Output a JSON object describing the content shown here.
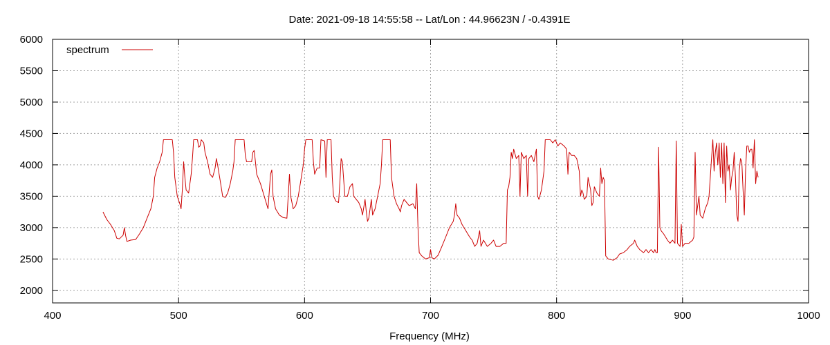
{
  "chart_data": {
    "type": "line",
    "title": "Date: 2021-09-18 14:55:58  --  Lat/Lon : 44.96623N / -0.4391E",
    "xlabel": "Frequency (MHz)",
    "ylabel": "",
    "xlim": [
      400,
      1000
    ],
    "ylim": [
      1800,
      6000
    ],
    "x_ticks": [
      400,
      500,
      600,
      700,
      800,
      900,
      1000
    ],
    "y_ticks": [
      2000,
      2500,
      3000,
      3500,
      4000,
      4500,
      5000,
      5500,
      6000
    ],
    "grid": true,
    "legend_position": "top-left",
    "series": [
      {
        "name": "spectrum",
        "color": "#cc0000",
        "points": [
          [
            440,
            3250
          ],
          [
            443,
            3130
          ],
          [
            446,
            3050
          ],
          [
            449,
            2950
          ],
          [
            451,
            2830
          ],
          [
            453,
            2820
          ],
          [
            456,
            2880
          ],
          [
            457,
            3000
          ],
          [
            458,
            2870
          ],
          [
            459,
            2780
          ],
          [
            462,
            2800
          ],
          [
            466,
            2810
          ],
          [
            469,
            2900
          ],
          [
            472,
            3000
          ],
          [
            475,
            3150
          ],
          [
            478,
            3300
          ],
          [
            480,
            3500
          ],
          [
            481,
            3800
          ],
          [
            483,
            3950
          ],
          [
            485,
            4050
          ],
          [
            487,
            4200
          ],
          [
            488,
            4400
          ],
          [
            495,
            4400
          ],
          [
            496,
            4200
          ],
          [
            497,
            3800
          ],
          [
            499,
            3500
          ],
          [
            501,
            3380
          ],
          [
            502,
            3300
          ],
          [
            503,
            3600
          ],
          [
            504,
            4050
          ],
          [
            505,
            3800
          ],
          [
            506,
            3600
          ],
          [
            508,
            3550
          ],
          [
            510,
            3850
          ],
          [
            511,
            4100
          ],
          [
            512,
            4400
          ],
          [
            515,
            4400
          ],
          [
            516,
            4280
          ],
          [
            517,
            4300
          ],
          [
            518,
            4400
          ],
          [
            520,
            4350
          ],
          [
            521,
            4200
          ],
          [
            523,
            4050
          ],
          [
            525,
            3850
          ],
          [
            527,
            3800
          ],
          [
            529,
            3950
          ],
          [
            530,
            4100
          ],
          [
            531,
            4000
          ],
          [
            533,
            3750
          ],
          [
            535,
            3500
          ],
          [
            537,
            3480
          ],
          [
            539,
            3550
          ],
          [
            541,
            3700
          ],
          [
            543,
            3900
          ],
          [
            544,
            4050
          ],
          [
            545,
            4400
          ],
          [
            552,
            4400
          ],
          [
            553,
            4150
          ],
          [
            554,
            4050
          ],
          [
            558,
            4050
          ],
          [
            559,
            4200
          ],
          [
            560,
            4230
          ],
          [
            561,
            4050
          ],
          [
            562,
            3850
          ],
          [
            565,
            3700
          ],
          [
            568,
            3500
          ],
          [
            571,
            3300
          ],
          [
            573,
            3850
          ],
          [
            574,
            3920
          ],
          [
            575,
            3500
          ],
          [
            577,
            3300
          ],
          [
            580,
            3200
          ],
          [
            583,
            3160
          ],
          [
            586,
            3150
          ],
          [
            587,
            3500
          ],
          [
            588,
            3850
          ],
          [
            589,
            3500
          ],
          [
            591,
            3300
          ],
          [
            593,
            3350
          ],
          [
            595,
            3500
          ],
          [
            597,
            3750
          ],
          [
            599,
            4000
          ],
          [
            600,
            4250
          ],
          [
            601,
            4400
          ],
          [
            606,
            4400
          ],
          [
            607,
            4050
          ],
          [
            608,
            3850
          ],
          [
            610,
            3950
          ],
          [
            612,
            3950
          ],
          [
            613,
            4400
          ],
          [
            616,
            4380
          ],
          [
            617,
            3800
          ],
          [
            618,
            4400
          ],
          [
            621,
            4400
          ],
          [
            622,
            3800
          ],
          [
            623,
            3500
          ],
          [
            625,
            3420
          ],
          [
            627,
            3400
          ],
          [
            628,
            3700
          ],
          [
            629,
            4100
          ],
          [
            630,
            4050
          ],
          [
            632,
            3500
          ],
          [
            634,
            3500
          ],
          [
            636,
            3650
          ],
          [
            638,
            3700
          ],
          [
            639,
            3500
          ],
          [
            641,
            3450
          ],
          [
            643,
            3400
          ],
          [
            645,
            3300
          ],
          [
            646,
            3200
          ],
          [
            648,
            3450
          ],
          [
            649,
            3250
          ],
          [
            650,
            3100
          ],
          [
            651,
            3150
          ],
          [
            653,
            3450
          ],
          [
            654,
            3200
          ],
          [
            656,
            3300
          ],
          [
            658,
            3500
          ],
          [
            660,
            3700
          ],
          [
            661,
            4000
          ],
          [
            662,
            4400
          ],
          [
            668,
            4400
          ],
          [
            669,
            3800
          ],
          [
            671,
            3500
          ],
          [
            673,
            3380
          ],
          [
            675,
            3300
          ],
          [
            676,
            3250
          ],
          [
            677,
            3350
          ],
          [
            679,
            3450
          ],
          [
            681,
            3400
          ],
          [
            683,
            3350
          ],
          [
            686,
            3380
          ],
          [
            688,
            3300
          ],
          [
            689,
            3700
          ],
          [
            690,
            3000
          ],
          [
            691,
            2600
          ],
          [
            693,
            2550
          ],
          [
            696,
            2500
          ],
          [
            699,
            2520
          ],
          [
            700,
            2650
          ],
          [
            701,
            2520
          ],
          [
            703,
            2500
          ],
          [
            706,
            2560
          ],
          [
            709,
            2700
          ],
          [
            712,
            2850
          ],
          [
            715,
            3000
          ],
          [
            718,
            3100
          ],
          [
            719,
            3200
          ],
          [
            720,
            3380
          ],
          [
            721,
            3200
          ],
          [
            723,
            3150
          ],
          [
            725,
            3050
          ],
          [
            728,
            2950
          ],
          [
            731,
            2850
          ],
          [
            733,
            2800
          ],
          [
            735,
            2700
          ],
          [
            737,
            2750
          ],
          [
            739,
            2950
          ],
          [
            740,
            2700
          ],
          [
            742,
            2800
          ],
          [
            745,
            2700
          ],
          [
            748,
            2750
          ],
          [
            750,
            2800
          ],
          [
            752,
            2700
          ],
          [
            755,
            2700
          ],
          [
            758,
            2750
          ],
          [
            760,
            2750
          ],
          [
            761,
            3600
          ],
          [
            762,
            3650
          ],
          [
            763,
            3800
          ],
          [
            764,
            4200
          ],
          [
            765,
            4100
          ],
          [
            766,
            4250
          ],
          [
            768,
            4100
          ],
          [
            770,
            4150
          ],
          [
            771,
            3500
          ],
          [
            772,
            4200
          ],
          [
            774,
            4100
          ],
          [
            776,
            4150
          ],
          [
            777,
            3500
          ],
          [
            778,
            4100
          ],
          [
            780,
            4150
          ],
          [
            782,
            4050
          ],
          [
            784,
            4250
          ],
          [
            785,
            3500
          ],
          [
            786,
            3450
          ],
          [
            788,
            3600
          ],
          [
            790,
            3900
          ],
          [
            791,
            4400
          ],
          [
            795,
            4400
          ],
          [
            797,
            4350
          ],
          [
            799,
            4400
          ],
          [
            801,
            4300
          ],
          [
            803,
            4350
          ],
          [
            806,
            4300
          ],
          [
            808,
            4250
          ],
          [
            809,
            3850
          ],
          [
            810,
            4200
          ],
          [
            812,
            4150
          ],
          [
            814,
            4150
          ],
          [
            816,
            4100
          ],
          [
            818,
            3900
          ],
          [
            819,
            3500
          ],
          [
            820,
            3600
          ],
          [
            821,
            3550
          ],
          [
            822,
            3450
          ],
          [
            824,
            3500
          ],
          [
            825,
            3800
          ],
          [
            826,
            3700
          ],
          [
            827,
            3600
          ],
          [
            828,
            3350
          ],
          [
            829,
            3400
          ],
          [
            830,
            3650
          ],
          [
            832,
            3550
          ],
          [
            834,
            3500
          ],
          [
            835,
            3950
          ],
          [
            836,
            3700
          ],
          [
            837,
            3800
          ],
          [
            838,
            3750
          ],
          [
            839,
            2550
          ],
          [
            841,
            2500
          ],
          [
            845,
            2480
          ],
          [
            848,
            2520
          ],
          [
            850,
            2580
          ],
          [
            853,
            2600
          ],
          [
            856,
            2650
          ],
          [
            858,
            2700
          ],
          [
            861,
            2750
          ],
          [
            862,
            2800
          ],
          [
            864,
            2700
          ],
          [
            866,
            2650
          ],
          [
            869,
            2600
          ],
          [
            871,
            2650
          ],
          [
            873,
            2600
          ],
          [
            875,
            2650
          ],
          [
            877,
            2600
          ],
          [
            878,
            2650
          ],
          [
            879,
            2600
          ],
          [
            880,
            2600
          ],
          [
            881,
            4280
          ],
          [
            882,
            3000
          ],
          [
            883,
            2950
          ],
          [
            885,
            2900
          ],
          [
            888,
            2800
          ],
          [
            890,
            2750
          ],
          [
            892,
            2800
          ],
          [
            894,
            2750
          ],
          [
            895,
            4380
          ],
          [
            896,
            2750
          ],
          [
            898,
            2700
          ],
          [
            899,
            3050
          ],
          [
            900,
            2700
          ],
          [
            902,
            2750
          ],
          [
            905,
            2750
          ],
          [
            908,
            2800
          ],
          [
            909,
            2850
          ],
          [
            910,
            4200
          ],
          [
            911,
            3200
          ],
          [
            913,
            3500
          ],
          [
            914,
            3200
          ],
          [
            916,
            3150
          ],
          [
            918,
            3300
          ],
          [
            920,
            3400
          ],
          [
            921,
            3500
          ],
          [
            922,
            3800
          ],
          [
            923,
            4100
          ],
          [
            924,
            4400
          ],
          [
            925,
            3900
          ],
          [
            926,
            4200
          ],
          [
            927,
            4350
          ],
          [
            928,
            4000
          ],
          [
            929,
            4350
          ],
          [
            930,
            3800
          ],
          [
            931,
            4350
          ],
          [
            932,
            3700
          ],
          [
            933,
            4350
          ],
          [
            934,
            3400
          ],
          [
            935,
            4300
          ],
          [
            936,
            3900
          ],
          [
            937,
            4000
          ],
          [
            938,
            3600
          ],
          [
            939,
            3800
          ],
          [
            940,
            3900
          ],
          [
            941,
            4200
          ],
          [
            942,
            3800
          ],
          [
            943,
            3200
          ],
          [
            944,
            3100
          ],
          [
            945,
            3900
          ],
          [
            946,
            4100
          ],
          [
            947,
            4050
          ],
          [
            948,
            3600
          ],
          [
            949,
            3200
          ],
          [
            950,
            3900
          ],
          [
            951,
            4300
          ],
          [
            952,
            4300
          ],
          [
            953,
            4200
          ],
          [
            954,
            4250
          ],
          [
            955,
            4250
          ],
          [
            956,
            3950
          ],
          [
            957,
            4400
          ],
          [
            958,
            3700
          ],
          [
            959,
            3900
          ],
          [
            960,
            3800
          ]
        ]
      }
    ]
  }
}
